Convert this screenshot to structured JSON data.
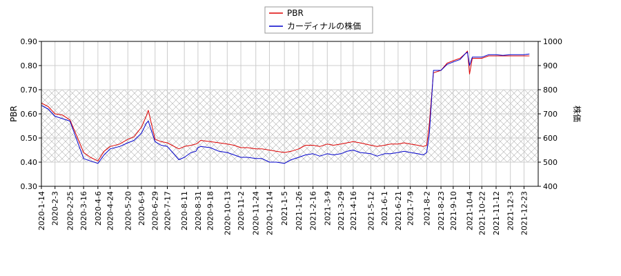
{
  "chart_data": {
    "type": "line",
    "legend": {
      "placement": "top-center"
    },
    "grid": true,
    "shaded_band": {
      "axis": "left",
      "from": 0.4,
      "to": 0.7,
      "pattern": "crosshatch"
    },
    "x_ticks": [
      "2020-1-14",
      "2020-2-3",
      "2020-2-25",
      "2020-3-16",
      "2020-4-6",
      "2020-4-24",
      "2020-5-20",
      "2020-6-9",
      "2020-6-29",
      "2020-7-17",
      "2020-8-11",
      "2020-8-31",
      "2020-9-18",
      "2020-10-13",
      "2020-11-2",
      "2020-11-24",
      "2020-12-14",
      "2021-1-5",
      "2021-1-26",
      "2021-2-16",
      "2021-3-9",
      "2021-3-29",
      "2021-4-16",
      "2021-5-12",
      "2021-6-1",
      "2021-6-21",
      "2021-7-9",
      "2021-8-2",
      "2021-8-23",
      "2021-9-10",
      "2021-10-4",
      "2021-10-22",
      "2021-11-12",
      "2021-12-3",
      "2021-12-23"
    ],
    "y_left": {
      "label": "PBR",
      "range": [
        0.3,
        0.9
      ],
      "ticks": [
        "0.30",
        "0.40",
        "0.50",
        "0.60",
        "0.70",
        "0.80",
        "0.90"
      ]
    },
    "y_right": {
      "label": "株価",
      "range": [
        400,
        1000
      ],
      "ticks": [
        "400",
        "500",
        "600",
        "700",
        "800",
        "900",
        "1000"
      ]
    },
    "series": [
      {
        "name": "PBR",
        "color": "#dd0000",
        "axis": "left",
        "x": [
          "2020-1-14",
          "2020-1-24",
          "2020-2-3",
          "2020-2-14",
          "2020-2-25",
          "2020-3-5",
          "2020-3-16",
          "2020-3-26",
          "2020-4-6",
          "2020-4-15",
          "2020-4-24",
          "2020-5-8",
          "2020-5-20",
          "2020-5-29",
          "2020-6-9",
          "2020-6-16",
          "2020-6-19",
          "2020-6-29",
          "2020-7-8",
          "2020-7-17",
          "2020-8-3",
          "2020-8-11",
          "2020-8-21",
          "2020-8-28",
          "2020-8-31",
          "2020-9-4",
          "2020-9-18",
          "2020-10-1",
          "2020-10-13",
          "2020-10-23",
          "2020-11-2",
          "2020-11-12",
          "2020-11-24",
          "2020-12-3",
          "2020-12-14",
          "2020-12-24",
          "2021-1-5",
          "2021-1-15",
          "2021-1-26",
          "2021-2-5",
          "2021-2-16",
          "2021-2-26",
          "2021-3-9",
          "2021-3-18",
          "2021-3-29",
          "2021-4-7",
          "2021-4-16",
          "2021-4-26",
          "2021-5-12",
          "2021-5-21",
          "2021-6-1",
          "2021-6-10",
          "2021-6-21",
          "2021-6-30",
          "2021-7-9",
          "2021-7-20",
          "2021-7-28",
          "2021-8-2",
          "2021-8-6",
          "2021-8-12",
          "2021-8-23",
          "2021-9-1",
          "2021-9-10",
          "2021-9-20",
          "2021-9-28",
          "2021-10-1",
          "2021-10-4",
          "2021-10-8",
          "2021-10-22",
          "2021-11-1",
          "2021-11-12",
          "2021-11-22",
          "2021-12-3",
          "2021-12-13",
          "2021-12-23",
          "2021-12-31"
        ],
        "values": [
          0.645,
          0.63,
          0.6,
          0.595,
          0.575,
          0.515,
          0.44,
          0.42,
          0.405,
          0.445,
          0.465,
          0.475,
          0.495,
          0.505,
          0.545,
          0.59,
          0.615,
          0.495,
          0.485,
          0.48,
          0.455,
          0.465,
          0.47,
          0.475,
          0.48,
          0.49,
          0.485,
          0.48,
          0.475,
          0.47,
          0.46,
          0.46,
          0.455,
          0.455,
          0.45,
          0.445,
          0.44,
          0.445,
          0.455,
          0.47,
          0.47,
          0.465,
          0.475,
          0.47,
          0.475,
          0.48,
          0.485,
          0.48,
          0.47,
          0.465,
          0.47,
          0.475,
          0.475,
          0.48,
          0.475,
          0.47,
          0.465,
          0.47,
          0.56,
          0.77,
          0.78,
          0.81,
          0.82,
          0.83,
          0.85,
          0.86,
          0.765,
          0.83,
          0.83,
          0.84,
          0.84,
          0.84,
          0.84,
          0.84,
          0.84,
          0.84
        ]
      },
      {
        "name": "カーディナルの株価",
        "color": "#0000cc",
        "axis": "right",
        "x": [
          "2020-1-14",
          "2020-1-24",
          "2020-2-3",
          "2020-2-14",
          "2020-2-25",
          "2020-3-5",
          "2020-3-16",
          "2020-3-26",
          "2020-4-6",
          "2020-4-15",
          "2020-4-24",
          "2020-5-8",
          "2020-5-20",
          "2020-5-29",
          "2020-6-9",
          "2020-6-16",
          "2020-6-19",
          "2020-6-29",
          "2020-7-8",
          "2020-7-17",
          "2020-8-3",
          "2020-8-11",
          "2020-8-21",
          "2020-8-28",
          "2020-8-31",
          "2020-9-4",
          "2020-9-18",
          "2020-10-1",
          "2020-10-13",
          "2020-10-23",
          "2020-11-2",
          "2020-11-12",
          "2020-11-24",
          "2020-12-3",
          "2020-12-14",
          "2020-12-24",
          "2021-1-5",
          "2021-1-15",
          "2021-1-26",
          "2021-2-5",
          "2021-2-16",
          "2021-2-26",
          "2021-3-9",
          "2021-3-18",
          "2021-3-29",
          "2021-4-7",
          "2021-4-16",
          "2021-4-26",
          "2021-5-12",
          "2021-5-21",
          "2021-6-1",
          "2021-6-10",
          "2021-6-21",
          "2021-6-30",
          "2021-7-9",
          "2021-7-20",
          "2021-7-28",
          "2021-8-2",
          "2021-8-6",
          "2021-8-12",
          "2021-8-23",
          "2021-9-1",
          "2021-9-10",
          "2021-9-20",
          "2021-9-28",
          "2021-10-1",
          "2021-10-4",
          "2021-10-8",
          "2021-10-22",
          "2021-11-1",
          "2021-11-12",
          "2021-11-22",
          "2021-12-3",
          "2021-12-13",
          "2021-12-23",
          "2021-12-31"
        ],
        "values": [
          735,
          720,
          690,
          680,
          670,
          600,
          515,
          505,
          495,
          530,
          555,
          565,
          580,
          590,
          620,
          660,
          670,
          585,
          570,
          565,
          510,
          520,
          540,
          545,
          560,
          565,
          560,
          545,
          540,
          530,
          520,
          520,
          515,
          515,
          500,
          500,
          495,
          510,
          520,
          530,
          535,
          525,
          535,
          530,
          535,
          545,
          550,
          540,
          535,
          525,
          535,
          535,
          540,
          545,
          540,
          535,
          530,
          540,
          620,
          880,
          880,
          905,
          915,
          925,
          950,
          955,
          900,
          935,
          935,
          945,
          945,
          942,
          945,
          945,
          945,
          948
        ]
      }
    ]
  }
}
